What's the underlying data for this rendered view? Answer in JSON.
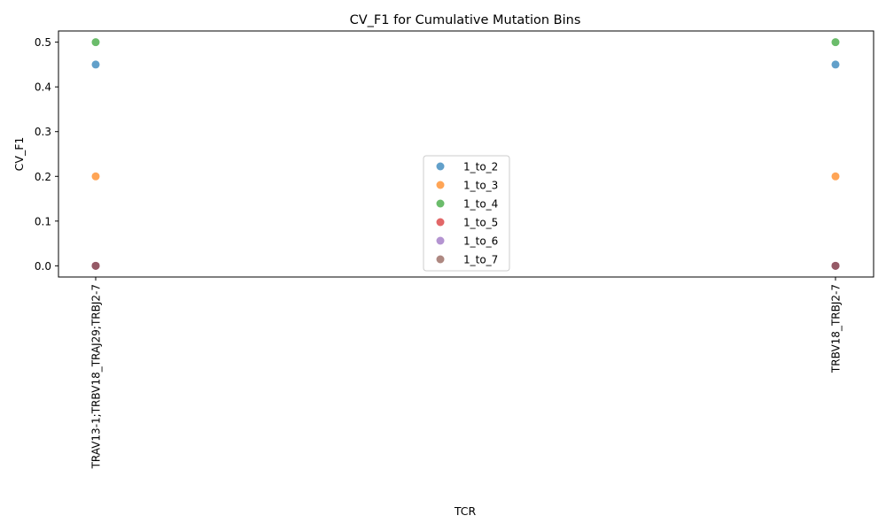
{
  "chart_data": {
    "type": "scatter",
    "title": "CV_F1 for Cumulative Mutation Bins",
    "xlabel": "TCR",
    "ylabel": "CV_F1",
    "categories": [
      "TRAV13-1;TRBV18_TRAJ29;TRBJ2-7",
      "TRBV18_TRBJ2-7"
    ],
    "ylim": [
      -0.025,
      0.525
    ],
    "yticks": [
      "0.0",
      "0.1",
      "0.2",
      "0.3",
      "0.4",
      "0.5"
    ],
    "grid": false,
    "legend_position": "center",
    "series": [
      {
        "name": "1_to_2",
        "color": "#1f77b4",
        "values": [
          0.45,
          0.45
        ]
      },
      {
        "name": "1_to_3",
        "color": "#ff7f0e",
        "values": [
          0.2,
          0.2
        ]
      },
      {
        "name": "1_to_4",
        "color": "#2ca02c",
        "values": [
          0.5,
          0.5
        ]
      },
      {
        "name": "1_to_5",
        "color": "#d62728",
        "values": [
          0.0,
          0.0
        ]
      },
      {
        "name": "1_to_6",
        "color": "#9467bd",
        "values": [
          0.0,
          0.0
        ]
      },
      {
        "name": "1_to_7",
        "color": "#8c564b",
        "values": [
          0.0,
          0.0
        ]
      }
    ]
  }
}
